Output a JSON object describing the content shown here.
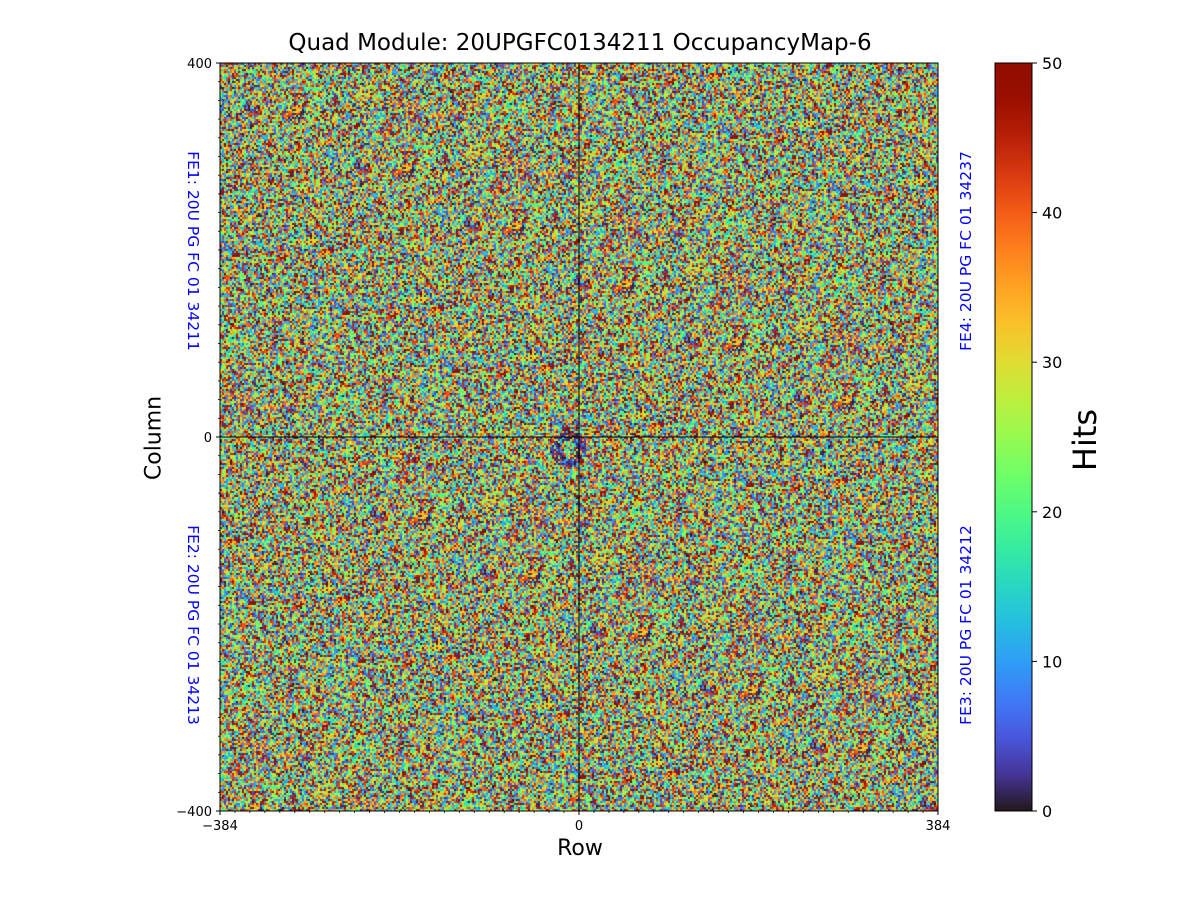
{
  "chart_data": {
    "type": "heatmap",
    "title": "Quad Module: 20UPGFC0134211 OccupancyMap-6",
    "xlabel": "Row",
    "ylabel": "Column",
    "xlim": [
      -384,
      384
    ],
    "ylim": [
      -400,
      400
    ],
    "x_ticks": [
      {
        "value": -384,
        "label": "−384"
      },
      {
        "value": 0,
        "label": "0"
      },
      {
        "value": 384,
        "label": "384"
      }
    ],
    "y_ticks": [
      {
        "value": 400,
        "label": "400"
      },
      {
        "value": 0,
        "label": "0"
      },
      {
        "value": -400,
        "label": "−400"
      }
    ],
    "colorbar": {
      "label": "Hits",
      "range": [
        0,
        50
      ],
      "ticks": [
        {
          "value": 0,
          "label": "0"
        },
        {
          "value": 10,
          "label": "10"
        },
        {
          "value": 20,
          "label": "20"
        },
        {
          "value": 30,
          "label": "30"
        },
        {
          "value": 40,
          "label": "40"
        },
        {
          "value": 50,
          "label": "50"
        }
      ],
      "colormap": "turbo"
    },
    "front_ends": [
      {
        "id": "FE1",
        "label": "FE1: 20U PG FC 01 34211",
        "quadrant": "top-left"
      },
      {
        "id": "FE2",
        "label": "FE2: 20U PG FC 01 34213",
        "quadrant": "bottom-left"
      },
      {
        "id": "FE3",
        "label": "FE3: 20U PG FC 01 34212",
        "quadrant": "bottom-right"
      },
      {
        "id": "FE4",
        "label": "FE4: 20U PG FC 01 34237",
        "quadrant": "top-right"
      }
    ],
    "distribution": "approximately uniform random hits between 0 and 50 across the full 768 x 800 pixel matrix, with a small low-occupancy ring just below and left of the origin"
  },
  "colors": {
    "fe_label": "#0000ff",
    "axis": "#000000",
    "background": "#ffffff"
  }
}
